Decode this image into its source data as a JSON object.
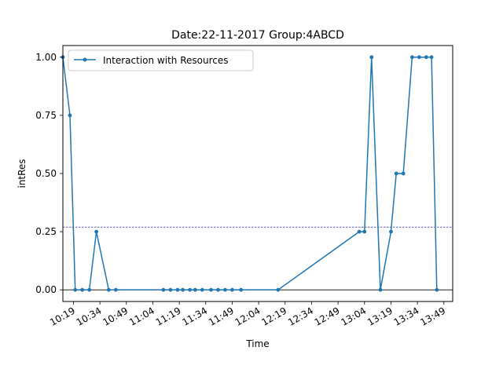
{
  "chart_data": {
    "type": "line",
    "title": "Date:22-11-2017  Group:4ABCD",
    "xlabel": "Time",
    "ylabel": "intRes",
    "xlim": [
      "10:13",
      "13:54"
    ],
    "ylim": [
      -0.05,
      1.05
    ],
    "x_ticks": [
      "10:19",
      "10:34",
      "10:49",
      "11:04",
      "11:19",
      "11:34",
      "11:49",
      "12:04",
      "12:19",
      "12:34",
      "12:49",
      "13:04",
      "13:19",
      "13:34",
      "13:49"
    ],
    "y_ticks": [
      "0.00",
      "0.25",
      "0.50",
      "0.75",
      "1.00"
    ],
    "legend": {
      "position": "upper-left"
    },
    "grid": false,
    "series": [
      {
        "name": "Interaction with Resources",
        "color": "#1f77b4",
        "marker": "point",
        "points": [
          {
            "x": "10:13",
            "y": 1.0
          },
          {
            "x": "10:17",
            "y": 0.75
          },
          {
            "x": "10:20",
            "y": 0.0
          },
          {
            "x": "10:24",
            "y": 0.0
          },
          {
            "x": "10:28",
            "y": 0.0
          },
          {
            "x": "10:32",
            "y": 0.25
          },
          {
            "x": "10:39",
            "y": 0.0
          },
          {
            "x": "10:43",
            "y": 0.0
          },
          {
            "x": "11:10",
            "y": 0.0
          },
          {
            "x": "11:14",
            "y": 0.0
          },
          {
            "x": "11:18",
            "y": 0.0
          },
          {
            "x": "11:21",
            "y": 0.0
          },
          {
            "x": "11:25",
            "y": 0.0
          },
          {
            "x": "11:28",
            "y": 0.0
          },
          {
            "x": "11:32",
            "y": 0.0
          },
          {
            "x": "11:37",
            "y": 0.0
          },
          {
            "x": "11:41",
            "y": 0.0
          },
          {
            "x": "11:45",
            "y": 0.0
          },
          {
            "x": "11:49",
            "y": 0.0
          },
          {
            "x": "11:54",
            "y": 0.0
          },
          {
            "x": "12:15",
            "y": 0.0
          },
          {
            "x": "13:01",
            "y": 0.25
          },
          {
            "x": "13:04",
            "y": 0.25
          },
          {
            "x": "13:08",
            "y": 1.0
          },
          {
            "x": "13:13",
            "y": 0.0
          },
          {
            "x": "13:19",
            "y": 0.25
          },
          {
            "x": "13:22",
            "y": 0.5
          },
          {
            "x": "13:26",
            "y": 0.5
          },
          {
            "x": "13:31",
            "y": 1.0
          },
          {
            "x": "13:35",
            "y": 1.0
          },
          {
            "x": "13:39",
            "y": 1.0
          },
          {
            "x": "13:42",
            "y": 1.0
          },
          {
            "x": "13:45",
            "y": 0.0
          }
        ]
      }
    ],
    "reference_lines": [
      {
        "y": 0.27,
        "style": "dashed",
        "color": "#000080"
      },
      {
        "y": 0.0,
        "style": "solid",
        "color": "#000000"
      }
    ]
  }
}
